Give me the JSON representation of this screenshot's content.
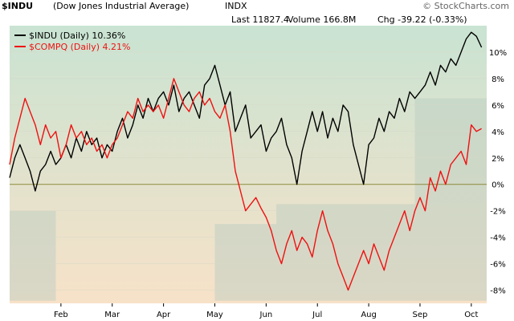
{
  "header": {
    "symbol": "$INDU",
    "title": "(Dow Jones Industrial Average)",
    "exchange": "INDX",
    "last": "Last 11827.4",
    "volume": "Volume 166.8M",
    "chg": "Chg -39.22 (-0.33%)",
    "brand": "© StockCharts.com"
  },
  "colors": {
    "indu": "#000000",
    "compq": "#ee1111",
    "zero_line": "#8b8b3c",
    "bg_top": "#c9e3d2",
    "bg_bottom": "#f7e2c8",
    "band": "#b9c9c2"
  },
  "chart_data": {
    "type": "line",
    "title": "$INDU (Dow Jones Industrial Average) INDX",
    "y_unit": "%",
    "ylim": [
      -9,
      12
    ],
    "y_ticks": [
      "10%",
      "8%",
      "6%",
      "4%",
      "2%",
      "0%",
      "-2%",
      "-4%",
      "-6%",
      "-8%"
    ],
    "x_labels": [
      "Feb",
      "Mar",
      "Apr",
      "May",
      "Jun",
      "Jul",
      "Aug",
      "Sep",
      "Oct"
    ],
    "x_label_pos": [
      1.0,
      2.0,
      3.0,
      4.0,
      5.0,
      6.0,
      7.0,
      8.0,
      9.0
    ],
    "legend": {
      "placement": "top-left"
    },
    "series": [
      {
        "name": "$INDU (Daily) 10.36%",
        "color_key": "indu",
        "x": [
          0.0,
          0.1,
          0.2,
          0.3,
          0.4,
          0.5,
          0.6,
          0.7,
          0.8,
          0.9,
          1.0,
          1.1,
          1.2,
          1.3,
          1.4,
          1.5,
          1.6,
          1.7,
          1.8,
          1.9,
          2.0,
          2.1,
          2.2,
          2.3,
          2.4,
          2.5,
          2.6,
          2.7,
          2.8,
          2.9,
          3.0,
          3.1,
          3.2,
          3.3,
          3.4,
          3.5,
          3.6,
          3.7,
          3.8,
          3.9,
          4.0,
          4.1,
          4.2,
          4.3,
          4.4,
          4.5,
          4.6,
          4.7,
          4.8,
          4.9,
          5.0,
          5.1,
          5.2,
          5.3,
          5.4,
          5.5,
          5.6,
          5.7,
          5.8,
          5.9,
          6.0,
          6.1,
          6.2,
          6.3,
          6.4,
          6.5,
          6.6,
          6.7,
          6.8,
          6.9,
          7.0,
          7.1,
          7.2,
          7.3,
          7.4,
          7.5,
          7.6,
          7.7,
          7.8,
          7.9,
          8.0,
          8.1,
          8.2,
          8.3,
          8.4,
          8.5,
          8.6,
          8.7,
          8.8,
          8.9,
          9.0,
          9.1,
          9.2
        ],
        "values": [
          0.5,
          2.0,
          3.0,
          2.0,
          1.0,
          -0.5,
          1.0,
          1.5,
          2.5,
          1.5,
          2.0,
          3.0,
          2.0,
          3.5,
          2.5,
          4.0,
          3.0,
          3.5,
          2.0,
          3.0,
          2.5,
          4.0,
          5.0,
          3.5,
          4.5,
          6.0,
          5.0,
          6.5,
          5.5,
          6.5,
          7.0,
          6.0,
          7.5,
          5.5,
          6.5,
          7.0,
          6.0,
          5.0,
          7.5,
          8.0,
          9.0,
          7.5,
          6.0,
          7.0,
          4.0,
          5.0,
          6.0,
          3.5,
          4.0,
          4.5,
          2.5,
          3.5,
          4.0,
          5.0,
          3.0,
          2.0,
          0.0,
          2.5,
          4.0,
          5.5,
          4.0,
          5.5,
          3.5,
          5.0,
          4.0,
          6.0,
          5.5,
          3.0,
          1.5,
          0.0,
          3.0,
          3.5,
          5.0,
          4.0,
          5.5,
          5.0,
          6.5,
          5.5,
          7.0,
          6.5,
          7.0,
          7.5,
          8.5,
          7.5,
          9.0,
          8.5,
          9.5,
          9.0,
          10.0,
          11.0,
          11.5,
          11.2,
          10.36
        ]
      },
      {
        "name": "$COMPQ (Daily) 4.21%",
        "color_key": "compq",
        "x": [
          0.0,
          0.1,
          0.2,
          0.3,
          0.4,
          0.5,
          0.6,
          0.7,
          0.8,
          0.9,
          1.0,
          1.1,
          1.2,
          1.3,
          1.4,
          1.5,
          1.6,
          1.7,
          1.8,
          1.9,
          2.0,
          2.1,
          2.2,
          2.3,
          2.4,
          2.5,
          2.6,
          2.7,
          2.8,
          2.9,
          3.0,
          3.1,
          3.2,
          3.3,
          3.4,
          3.5,
          3.6,
          3.7,
          3.8,
          3.9,
          4.0,
          4.1,
          4.2,
          4.3,
          4.4,
          4.5,
          4.6,
          4.7,
          4.8,
          4.9,
          5.0,
          5.1,
          5.2,
          5.3,
          5.4,
          5.5,
          5.6,
          5.7,
          5.8,
          5.9,
          6.0,
          6.1,
          6.2,
          6.3,
          6.4,
          6.5,
          6.6,
          6.7,
          6.8,
          6.9,
          7.0,
          7.1,
          7.2,
          7.3,
          7.4,
          7.5,
          7.6,
          7.7,
          7.8,
          7.9,
          8.0,
          8.1,
          8.2,
          8.3,
          8.4,
          8.5,
          8.6,
          8.7,
          8.8,
          8.9,
          9.0,
          9.1,
          9.2
        ],
        "values": [
          1.5,
          3.5,
          5.0,
          6.5,
          5.5,
          4.5,
          3.0,
          4.5,
          3.5,
          4.0,
          2.0,
          3.0,
          4.5,
          3.5,
          4.0,
          3.0,
          3.5,
          2.5,
          3.0,
          2.0,
          3.0,
          3.5,
          4.5,
          5.5,
          5.0,
          6.5,
          5.5,
          6.0,
          5.5,
          6.0,
          5.0,
          6.5,
          8.0,
          7.0,
          6.0,
          5.5,
          6.5,
          7.0,
          6.0,
          6.5,
          5.5,
          5.0,
          6.0,
          4.0,
          1.0,
          -0.5,
          -2.0,
          -1.5,
          -1.0,
          -1.8,
          -2.5,
          -3.5,
          -5.0,
          -6.0,
          -4.5,
          -3.5,
          -5.0,
          -4.0,
          -4.5,
          -5.5,
          -3.5,
          -2.0,
          -3.5,
          -4.5,
          -6.0,
          -7.0,
          -8.0,
          -7.0,
          -6.0,
          -5.0,
          -6.0,
          -4.5,
          -5.5,
          -6.5,
          -5.0,
          -4.0,
          -3.0,
          -2.0,
          -3.5,
          -2.0,
          -1.0,
          -2.0,
          0.5,
          -0.5,
          1.0,
          0.0,
          1.5,
          2.0,
          2.5,
          1.5,
          4.5,
          4.0,
          4.21
        ]
      }
    ]
  }
}
